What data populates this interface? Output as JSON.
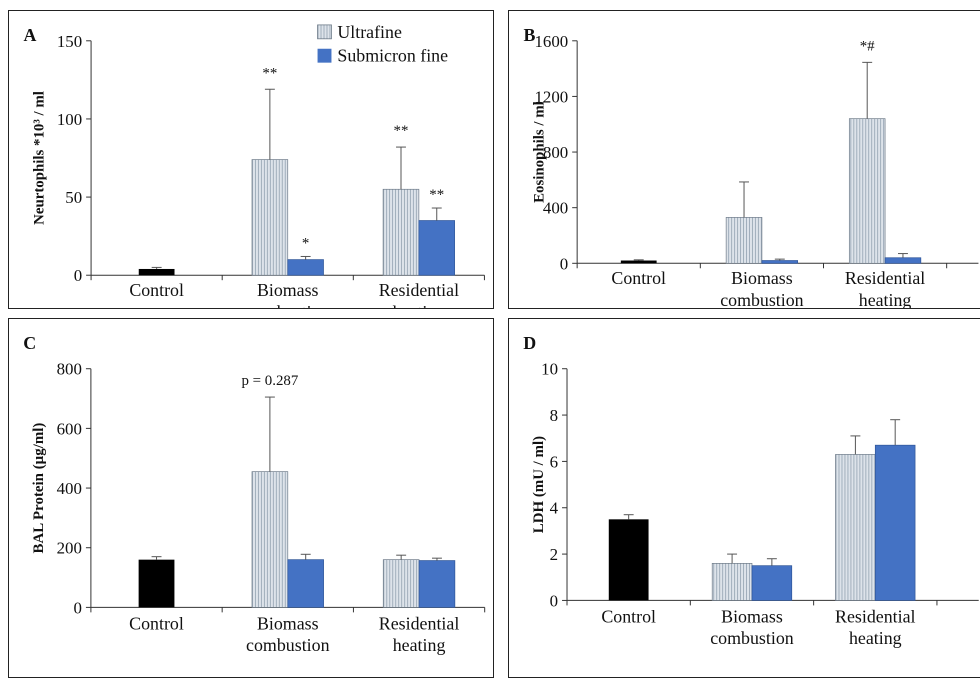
{
  "legend": {
    "ultrafine_label": "Ultrafine",
    "submicron_label": "Submicron fine"
  },
  "colors": {
    "control": "#000000",
    "ultrafine_fill": "#dde3ea",
    "ultrafine_stripe": "#9aa8b6",
    "submicron": "#4472c4",
    "axis": "#333333"
  },
  "chart_data": [
    {
      "panel_letter": "A",
      "type": "bar",
      "ylabel": "Neurtophils *10³ / ml",
      "ylim": [
        0,
        150
      ],
      "yticks": [
        0,
        50,
        100,
        150
      ],
      "categories": [
        {
          "lines": [
            "Control"
          ]
        },
        {
          "lines": [
            "Biomass",
            "combustion"
          ]
        },
        {
          "lines": [
            "Residential",
            "heating"
          ]
        }
      ],
      "control": {
        "value": 4,
        "error": 1
      },
      "series": [
        {
          "name": "Ultrafine",
          "values": [
            null,
            74,
            55
          ],
          "errors": [
            null,
            45,
            27
          ],
          "annotations": [
            null,
            "**",
            "**"
          ]
        },
        {
          "name": "Submicron fine",
          "values": [
            null,
            10,
            35
          ],
          "errors": [
            null,
            2,
            8
          ],
          "annotations": [
            null,
            "*",
            "**"
          ]
        }
      ],
      "legend": "top-right"
    },
    {
      "panel_letter": "B",
      "type": "bar",
      "ylabel": "Eosinophils / ml",
      "ylim": [
        0,
        1600
      ],
      "yticks": [
        0,
        400,
        800,
        1200,
        1600
      ],
      "categories": [
        {
          "lines": [
            "Control"
          ]
        },
        {
          "lines": [
            "Biomass",
            "combustion"
          ]
        },
        {
          "lines": [
            "Residential",
            "heating"
          ]
        }
      ],
      "control": {
        "value": 20,
        "error": 5
      },
      "series": [
        {
          "name": "Ultrafine",
          "values": [
            null,
            330,
            1040
          ],
          "errors": [
            null,
            255,
            405
          ],
          "annotations": [
            null,
            "",
            "*#"
          ]
        },
        {
          "name": "Submicron fine",
          "values": [
            null,
            20,
            40
          ],
          "errors": [
            null,
            10,
            30
          ],
          "annotations": [
            null,
            "",
            ""
          ]
        }
      ]
    },
    {
      "panel_letter": "C",
      "type": "bar",
      "ylabel": "BAL Protein (µg/ml)",
      "ylim": [
        0,
        800
      ],
      "yticks": [
        0,
        200,
        400,
        600,
        800
      ],
      "categories": [
        {
          "lines": [
            "Control"
          ]
        },
        {
          "lines": [
            "Biomass",
            "combustion"
          ]
        },
        {
          "lines": [
            "Residential",
            "heating"
          ]
        }
      ],
      "control": {
        "value": 160,
        "error": 10
      },
      "series": [
        {
          "name": "Ultrafine",
          "values": [
            null,
            455,
            160
          ],
          "errors": [
            null,
            250,
            15
          ],
          "annotations": [
            null,
            "p = 0.287",
            ""
          ]
        },
        {
          "name": "Submicron fine",
          "values": [
            null,
            160,
            157
          ],
          "errors": [
            null,
            18,
            8
          ],
          "annotations": [
            null,
            "",
            ""
          ]
        }
      ]
    },
    {
      "panel_letter": "D",
      "type": "bar",
      "ylabel": "LDH (mU / ml)",
      "ylim": [
        0,
        10
      ],
      "yticks": [
        0,
        2,
        4,
        6,
        8,
        10
      ],
      "categories": [
        {
          "lines": [
            "Control"
          ]
        },
        {
          "lines": [
            "Biomass",
            "combustion"
          ]
        },
        {
          "lines": [
            "Residential",
            "heating"
          ]
        }
      ],
      "control": {
        "value": 3.5,
        "error": 0.2
      },
      "series": [
        {
          "name": "Ultrafine",
          "values": [
            null,
            1.6,
            6.3
          ],
          "errors": [
            null,
            0.4,
            0.8
          ],
          "annotations": [
            null,
            "",
            ""
          ]
        },
        {
          "name": "Submicron fine",
          "values": [
            null,
            1.5,
            6.7
          ],
          "errors": [
            null,
            0.3,
            1.1
          ],
          "annotations": [
            null,
            "",
            ""
          ]
        }
      ]
    }
  ]
}
